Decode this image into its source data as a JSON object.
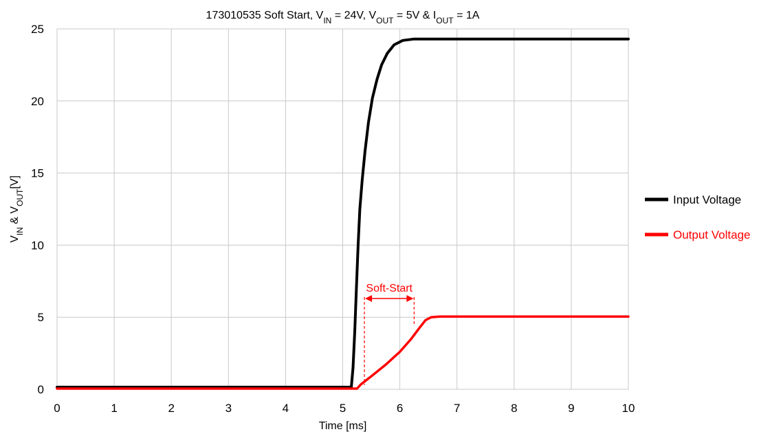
{
  "chart_data": {
    "type": "line",
    "title": {
      "parts": [
        {
          "text": "173010535  Soft Start, V"
        },
        {
          "text": "IN",
          "sub": true
        },
        {
          "text": " = 24V,  V"
        },
        {
          "text": "OUT",
          "sub": true
        },
        {
          "text": " = 5V & I"
        },
        {
          "text": "OUT",
          "sub": true
        },
        {
          "text": " = 1A"
        }
      ]
    },
    "xlabel": "Time [ms]",
    "ylabel": {
      "parts": [
        {
          "text": "V"
        },
        {
          "text": "IN",
          "sub": true
        },
        {
          "text": " & V"
        },
        {
          "text": "OUT",
          "sub": true
        },
        {
          "text": "[V]"
        }
      ]
    },
    "xlim": [
      0,
      10
    ],
    "ylim": [
      0,
      25
    ],
    "xticks": [
      "0",
      "1",
      "2",
      "3",
      "4",
      "5",
      "6",
      "7",
      "8",
      "9",
      "10"
    ],
    "yticks": [
      "0",
      "5",
      "10",
      "15",
      "20",
      "25"
    ],
    "grid": true,
    "legend_position": "right",
    "series": [
      {
        "name": "Input Voltage",
        "color": "#000000",
        "points": [
          [
            0,
            0.15
          ],
          [
            0.5,
            0.15
          ],
          [
            1.1,
            0.15
          ],
          [
            2.4,
            0.15
          ],
          [
            2.65,
            0.15
          ],
          [
            5.15,
            0.15
          ],
          [
            5.18,
            1.5
          ],
          [
            5.21,
            4
          ],
          [
            5.24,
            7
          ],
          [
            5.27,
            10
          ],
          [
            5.3,
            12.5
          ],
          [
            5.34,
            14.5
          ],
          [
            5.39,
            16.5
          ],
          [
            5.45,
            18.5
          ],
          [
            5.52,
            20.2
          ],
          [
            5.6,
            21.5
          ],
          [
            5.68,
            22.5
          ],
          [
            5.78,
            23.3
          ],
          [
            5.9,
            23.9
          ],
          [
            6.05,
            24.2
          ],
          [
            6.25,
            24.3
          ],
          [
            7,
            24.3
          ],
          [
            8,
            24.3
          ],
          [
            9,
            24.3
          ],
          [
            10,
            24.3
          ]
        ]
      },
      {
        "name": "Output Voltage",
        "color": "#ff0000",
        "points": [
          [
            0,
            0.05
          ],
          [
            5.15,
            0.05
          ],
          [
            5.25,
            0.05
          ],
          [
            5.32,
            0.35
          ],
          [
            5.5,
            0.9
          ],
          [
            5.75,
            1.7
          ],
          [
            6.0,
            2.6
          ],
          [
            6.2,
            3.5
          ],
          [
            6.35,
            4.3
          ],
          [
            6.45,
            4.8
          ],
          [
            6.55,
            5.0
          ],
          [
            6.7,
            5.05
          ],
          [
            8,
            5.05
          ],
          [
            10,
            5.05
          ]
        ]
      }
    ],
    "annotation": {
      "label": "Soft-Start",
      "color": "#ff0000",
      "x_start": 5.38,
      "x_end": 6.25,
      "y": 6.3
    }
  }
}
